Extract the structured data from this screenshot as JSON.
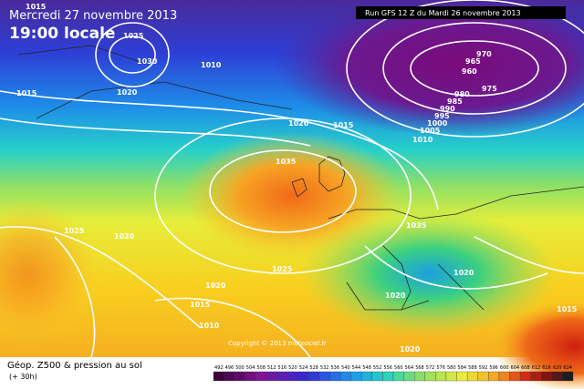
{
  "header": {
    "date": "Mercredi 27 novembre 2013",
    "time": "19:00 locale",
    "run": "Run GFS 12 Z du Mardi 26 novembre 2013"
  },
  "footer": {
    "title": "Géop. Z500 & pression au sol",
    "lead": "(+ 30h)",
    "copyright": "Copyright © 2013 meteociel.fr"
  },
  "isobars": [
    1015,
    1025,
    1030,
    1020,
    1010,
    1015,
    970,
    965,
    960,
    975,
    980,
    985,
    990,
    995,
    1000,
    1005,
    1010,
    1020,
    1015,
    1035,
    1025,
    1020,
    1020,
    1015,
    1010,
    1035,
    1020,
    1020,
    1025,
    1015,
    1020
  ],
  "colorbar": [
    492,
    496,
    500,
    504,
    508,
    512,
    516,
    520,
    524,
    528,
    532,
    536,
    540,
    544,
    548,
    552,
    556,
    560,
    564,
    568,
    572,
    576,
    580,
    584,
    588,
    592,
    596,
    600,
    604,
    608,
    612,
    616,
    620,
    624
  ]
}
